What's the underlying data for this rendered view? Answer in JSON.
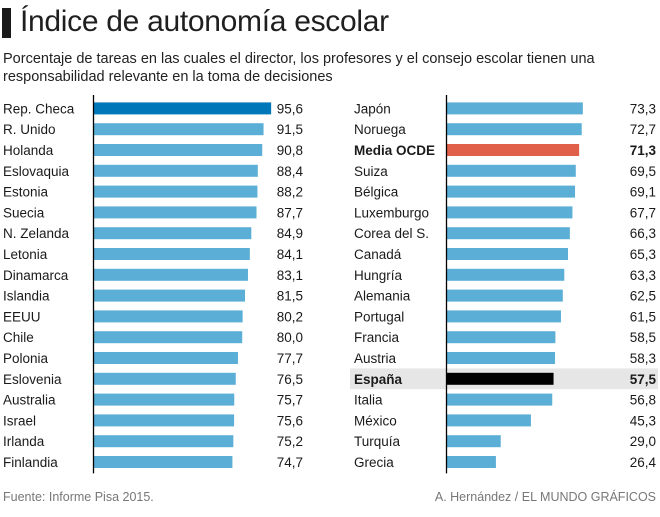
{
  "header": {
    "title": "Índice de autonomía escolar",
    "subtitle": "Porcentaje de tareas en las cuales el director, los profesores y el consejo escolar tienen una responsabilidad relevante en la toma de decisiones"
  },
  "footer": {
    "source": "Fuente: Informe Pisa 2015.",
    "credit": "A. Hernández / EL MUNDO GRÁFICOS"
  },
  "colors": {
    "bar_default": "#5bafd6",
    "bar_top": "#0077b8",
    "bar_oecd": "#e0604a",
    "bar_spain": "#000000",
    "highlight_band": "#e6e6e6",
    "axis": "#000000",
    "text": "#1a1a1a"
  },
  "chart_data": {
    "type": "bar",
    "orientation": "horizontal",
    "title": "Índice de autonomía escolar",
    "subtitle": "Porcentaje de tareas en las cuales el director, los profesores y el consejo escolar tienen una responsabilidad relevante en la toma de decisiones",
    "xlabel": "",
    "ylabel": "",
    "xlim": [
      0,
      100
    ],
    "grid": false,
    "decimal_separator": ",",
    "columns": [
      {
        "categories": [
          "Rep. Checa",
          "R. Unido",
          "Holanda",
          "Eslovaquia",
          "Estonia",
          "Suecia",
          "N. Zelanda",
          "Letonia",
          "Dinamarca",
          "Islandia",
          "EEUU",
          "Chile",
          "Polonia",
          "Eslovenia",
          "Australia",
          "Israel",
          "Irlanda",
          "Finlandia"
        ],
        "values": [
          95.6,
          91.5,
          90.8,
          88.4,
          88.2,
          87.7,
          84.9,
          84.1,
          83.1,
          81.5,
          80.2,
          80.0,
          77.7,
          76.5,
          75.7,
          75.6,
          75.2,
          74.7
        ],
        "styles": [
          "top",
          "default",
          "default",
          "default",
          "default",
          "default",
          "default",
          "default",
          "default",
          "default",
          "default",
          "default",
          "default",
          "default",
          "default",
          "default",
          "default",
          "default"
        ]
      },
      {
        "categories": [
          "Japón",
          "Noruega",
          "Media OCDE",
          "Suiza",
          "Bélgica",
          "Luxemburgo",
          "Corea del S.",
          "Canadá",
          "Hungría",
          "Alemania",
          "Portugal",
          "Francia",
          "Austria",
          "España",
          "Italia",
          "México",
          "Turquía",
          "Grecia"
        ],
        "values": [
          73.3,
          72.7,
          71.3,
          69.5,
          69.1,
          67.7,
          66.3,
          65.3,
          63.3,
          62.5,
          61.5,
          58.5,
          58.3,
          57.5,
          56.8,
          45.3,
          29.0,
          26.4
        ],
        "styles": [
          "default",
          "default",
          "oecd",
          "default",
          "default",
          "default",
          "default",
          "default",
          "default",
          "default",
          "default",
          "default",
          "default",
          "spain",
          "default",
          "default",
          "default",
          "default"
        ]
      }
    ]
  }
}
